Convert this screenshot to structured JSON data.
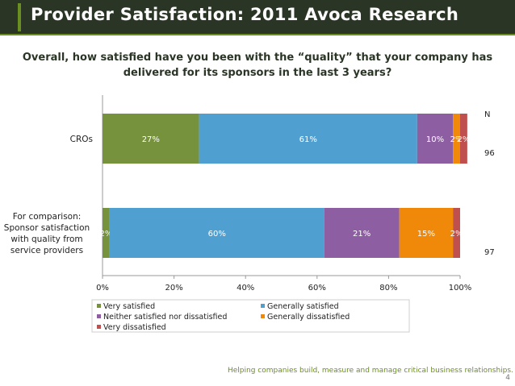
{
  "slide": {
    "title": "Provider Satisfaction:  2011 Avoca Research",
    "question": "Overall, how satisfied have you been with the “quality” that your company has delivered for its sponsors in the last 3 years?",
    "footer": "Helping companies build, measure and manage critical business relationships.",
    "page_number": "4",
    "n_header": "N"
  },
  "chart_data": {
    "type": "bar",
    "orientation": "horizontal",
    "stacked": true,
    "categories": [
      "CROs",
      "For comparison: Sponsor satisfaction with quality from service providers"
    ],
    "category_lines": [
      [
        "CROs"
      ],
      [
        "For comparison:",
        "Sponsor satisfaction",
        "with quality from",
        "service providers"
      ]
    ],
    "n_values": [
      "96",
      "97"
    ],
    "series": [
      {
        "name": "Very satisfied",
        "color": "#76923c",
        "values": [
          27,
          2
        ],
        "labels": [
          "27%",
          "2%"
        ]
      },
      {
        "name": "Generally satisfied",
        "color": "#4f9fd1",
        "values": [
          61,
          60
        ],
        "labels": [
          "61%",
          "60%"
        ]
      },
      {
        "name": "Neither satisfied nor dissatisfied",
        "color": "#8e5ea2",
        "values": [
          10,
          21
        ],
        "labels": [
          "10%",
          "21%"
        ]
      },
      {
        "name": "Generally dissatisfied",
        "color": "#f0880a",
        "values": [
          2,
          15
        ],
        "labels": [
          "2%",
          "15%"
        ]
      },
      {
        "name": "Very dissatisfied",
        "color": "#c0504d",
        "values": [
          2,
          2
        ],
        "labels": [
          "2%",
          "2%"
        ]
      }
    ],
    "xlim": [
      0,
      100
    ],
    "xticks": [
      "0%",
      "20%",
      "40%",
      "60%",
      "80%",
      "100%"
    ],
    "legend_position": "bottom",
    "grid": false
  }
}
